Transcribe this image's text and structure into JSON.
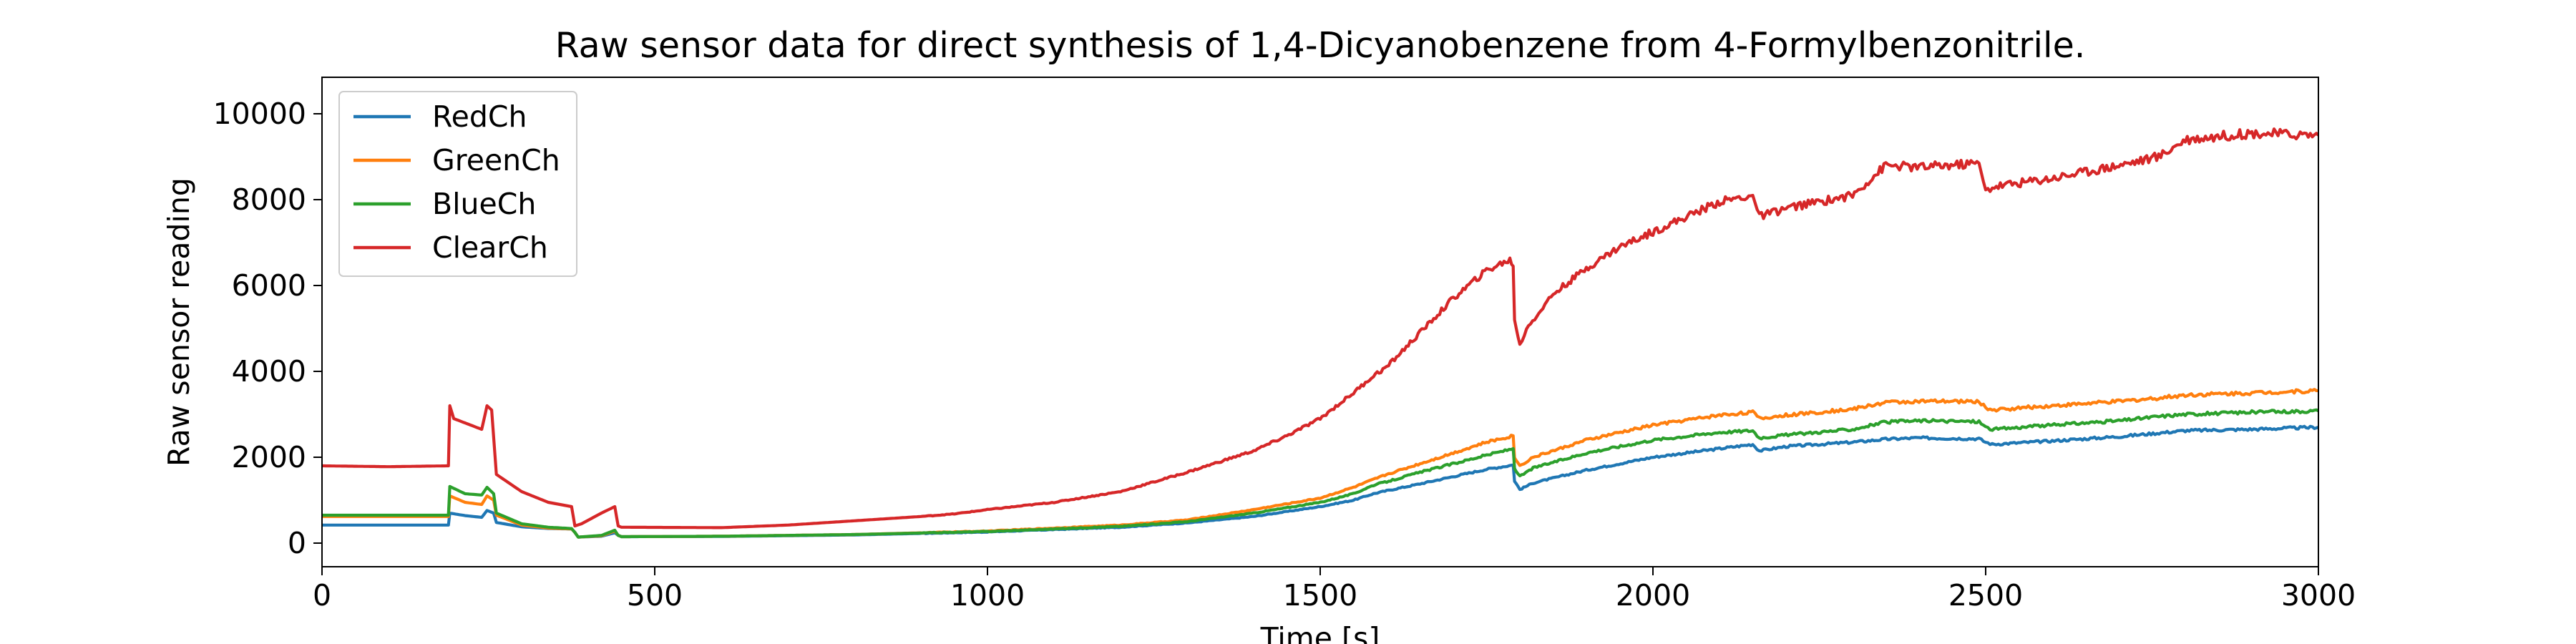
{
  "chart_data": {
    "type": "line",
    "title": "Raw sensor data for direct synthesis of 1,4-Dicyanobenzene from 4-Formylbenzonitrile.",
    "xlabel": "Time [s]",
    "ylabel": "Raw sensor reading",
    "xlim": [
      0,
      3000
    ],
    "ylim": [
      -550,
      10850
    ],
    "xticks": [
      0,
      500,
      1000,
      1500,
      2000,
      2500,
      3000
    ],
    "yticks": [
      0,
      2000,
      4000,
      6000,
      8000,
      10000
    ],
    "grid": false,
    "legend_position": "top-left",
    "series": [
      {
        "name": "RedCh",
        "color": "#1f77b4",
        "points": [
          [
            0,
            420
          ],
          [
            100,
            420
          ],
          [
            190,
            420
          ],
          [
            192,
            700
          ],
          [
            215,
            640
          ],
          [
            240,
            600
          ],
          [
            248,
            760
          ],
          [
            258,
            700
          ],
          [
            262,
            480
          ],
          [
            300,
            380
          ],
          [
            340,
            340
          ],
          [
            375,
            330
          ],
          [
            380,
            250
          ],
          [
            385,
            140
          ],
          [
            420,
            160
          ],
          [
            440,
            240
          ],
          [
            445,
            180
          ],
          [
            450,
            150
          ],
          [
            600,
            155
          ],
          [
            800,
            190
          ],
          [
            1000,
            260
          ],
          [
            1200,
            370
          ],
          [
            1300,
            470
          ],
          [
            1400,
            620
          ],
          [
            1500,
            850
          ],
          [
            1550,
            1000
          ],
          [
            1580,
            1150
          ],
          [
            1600,
            1220
          ],
          [
            1650,
            1380
          ],
          [
            1700,
            1550
          ],
          [
            1750,
            1720
          ],
          [
            1790,
            1820
          ],
          [
            1792,
            1450
          ],
          [
            1800,
            1250
          ],
          [
            1820,
            1400
          ],
          [
            1900,
            1700
          ],
          [
            2000,
            2000
          ],
          [
            2100,
            2200
          ],
          [
            2150,
            2300
          ],
          [
            2160,
            2150
          ],
          [
            2200,
            2250
          ],
          [
            2300,
            2350
          ],
          [
            2350,
            2420
          ],
          [
            2400,
            2450
          ],
          [
            2490,
            2430
          ],
          [
            2500,
            2350
          ],
          [
            2510,
            2300
          ],
          [
            2600,
            2380
          ],
          [
            2700,
            2480
          ],
          [
            2800,
            2620
          ],
          [
            2900,
            2650
          ],
          [
            3000,
            2700
          ]
        ]
      },
      {
        "name": "GreenCh",
        "color": "#ff7f0e",
        "points": [
          [
            0,
            620
          ],
          [
            100,
            620
          ],
          [
            190,
            620
          ],
          [
            192,
            1100
          ],
          [
            215,
            950
          ],
          [
            240,
            900
          ],
          [
            248,
            1100
          ],
          [
            258,
            1000
          ],
          [
            262,
            650
          ],
          [
            300,
            420
          ],
          [
            340,
            350
          ],
          [
            375,
            330
          ],
          [
            380,
            250
          ],
          [
            385,
            140
          ],
          [
            420,
            170
          ],
          [
            440,
            280
          ],
          [
            445,
            180
          ],
          [
            450,
            150
          ],
          [
            600,
            160
          ],
          [
            800,
            200
          ],
          [
            1000,
            280
          ],
          [
            1200,
            420
          ],
          [
            1300,
            540
          ],
          [
            1400,
            780
          ],
          [
            1500,
            1050
          ],
          [
            1550,
            1300
          ],
          [
            1580,
            1480
          ],
          [
            1600,
            1600
          ],
          [
            1650,
            1850
          ],
          [
            1700,
            2100
          ],
          [
            1750,
            2350
          ],
          [
            1790,
            2500
          ],
          [
            1792,
            2000
          ],
          [
            1800,
            1800
          ],
          [
            1820,
            2000
          ],
          [
            1900,
            2400
          ],
          [
            2000,
            2750
          ],
          [
            2100,
            2980
          ],
          [
            2150,
            3050
          ],
          [
            2160,
            2900
          ],
          [
            2200,
            2980
          ],
          [
            2300,
            3120
          ],
          [
            2350,
            3280
          ],
          [
            2400,
            3300
          ],
          [
            2490,
            3300
          ],
          [
            2500,
            3150
          ],
          [
            2510,
            3100
          ],
          [
            2600,
            3200
          ],
          [
            2700,
            3300
          ],
          [
            2760,
            3380
          ],
          [
            2800,
            3450
          ],
          [
            2900,
            3500
          ],
          [
            3000,
            3550
          ]
        ]
      },
      {
        "name": "BlueCh",
        "color": "#2ca02c",
        "points": [
          [
            0,
            650
          ],
          [
            100,
            650
          ],
          [
            190,
            650
          ],
          [
            192,
            1320
          ],
          [
            215,
            1150
          ],
          [
            240,
            1120
          ],
          [
            248,
            1300
          ],
          [
            258,
            1150
          ],
          [
            262,
            700
          ],
          [
            300,
            450
          ],
          [
            340,
            370
          ],
          [
            375,
            340
          ],
          [
            380,
            250
          ],
          [
            385,
            140
          ],
          [
            420,
            180
          ],
          [
            440,
            300
          ],
          [
            445,
            180
          ],
          [
            450,
            150
          ],
          [
            600,
            160
          ],
          [
            800,
            200
          ],
          [
            1000,
            270
          ],
          [
            1200,
            390
          ],
          [
            1300,
            500
          ],
          [
            1400,
            700
          ],
          [
            1500,
            950
          ],
          [
            1550,
            1150
          ],
          [
            1580,
            1350
          ],
          [
            1600,
            1430
          ],
          [
            1650,
            1650
          ],
          [
            1700,
            1850
          ],
          [
            1750,
            2050
          ],
          [
            1790,
            2200
          ],
          [
            1792,
            1750
          ],
          [
            1800,
            1550
          ],
          [
            1820,
            1750
          ],
          [
            1900,
            2100
          ],
          [
            2000,
            2400
          ],
          [
            2100,
            2580
          ],
          [
            2150,
            2620
          ],
          [
            2160,
            2450
          ],
          [
            2200,
            2520
          ],
          [
            2300,
            2650
          ],
          [
            2350,
            2820
          ],
          [
            2400,
            2850
          ],
          [
            2490,
            2830
          ],
          [
            2500,
            2700
          ],
          [
            2510,
            2650
          ],
          [
            2600,
            2750
          ],
          [
            2700,
            2850
          ],
          [
            2760,
            2950
          ],
          [
            2800,
            3000
          ],
          [
            2900,
            3050
          ],
          [
            3000,
            3080
          ]
        ]
      },
      {
        "name": "ClearCh",
        "color": "#d62728",
        "points": [
          [
            0,
            1800
          ],
          [
            100,
            1780
          ],
          [
            190,
            1800
          ],
          [
            192,
            3200
          ],
          [
            198,
            2900
          ],
          [
            240,
            2650
          ],
          [
            248,
            3200
          ],
          [
            255,
            3100
          ],
          [
            262,
            1600
          ],
          [
            300,
            1200
          ],
          [
            340,
            950
          ],
          [
            375,
            850
          ],
          [
            380,
            400
          ],
          [
            390,
            450
          ],
          [
            420,
            700
          ],
          [
            440,
            850
          ],
          [
            445,
            400
          ],
          [
            450,
            370
          ],
          [
            600,
            360
          ],
          [
            700,
            420
          ],
          [
            800,
            520
          ],
          [
            900,
            620
          ],
          [
            950,
            680
          ],
          [
            1000,
            780
          ],
          [
            1100,
            950
          ],
          [
            1200,
            1200
          ],
          [
            1300,
            1650
          ],
          [
            1400,
            2150
          ],
          [
            1450,
            2500
          ],
          [
            1500,
            2900
          ],
          [
            1550,
            3500
          ],
          [
            1580,
            3900
          ],
          [
            1600,
            4100
          ],
          [
            1650,
            4900
          ],
          [
            1700,
            5700
          ],
          [
            1750,
            6350
          ],
          [
            1785,
            6600
          ],
          [
            1790,
            6450
          ],
          [
            1792,
            5200
          ],
          [
            1800,
            4600
          ],
          [
            1810,
            5000
          ],
          [
            1850,
            5800
          ],
          [
            1900,
            6400
          ],
          [
            1950,
            6900
          ],
          [
            2000,
            7250
          ],
          [
            2050,
            7600
          ],
          [
            2100,
            7950
          ],
          [
            2150,
            8100
          ],
          [
            2160,
            7600
          ],
          [
            2200,
            7800
          ],
          [
            2300,
            8100
          ],
          [
            2350,
            8800
          ],
          [
            2400,
            8750
          ],
          [
            2490,
            8850
          ],
          [
            2500,
            8200
          ],
          [
            2510,
            8300
          ],
          [
            2600,
            8500
          ],
          [
            2700,
            8800
          ],
          [
            2760,
            9000
          ],
          [
            2800,
            9400
          ],
          [
            2900,
            9550
          ],
          [
            3000,
            9500
          ]
        ]
      }
    ]
  }
}
